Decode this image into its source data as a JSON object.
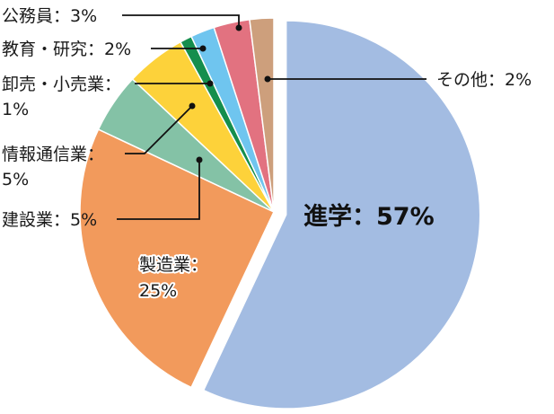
{
  "chart_data": {
    "type": "pie",
    "title": "",
    "slices": [
      {
        "key": "shingaku",
        "label": "進学",
        "value": 57,
        "display": "57%",
        "text": "進学：57%",
        "color": "#a3bce2"
      },
      {
        "key": "seizo",
        "label": "製造業",
        "value": 25,
        "display": "25%",
        "text_line1": "製造業：",
        "text_line2": "25%",
        "color": "#f29a5c"
      },
      {
        "key": "kensetsu",
        "label": "建設業",
        "value": 5,
        "display": "5%",
        "text": "建設業：5%",
        "color": "#84c2a6"
      },
      {
        "key": "joho",
        "label": "情報通信業",
        "value": 5,
        "display": "5%",
        "text_line1": "情報通信業：",
        "text_line2": "5%",
        "color": "#fdd23a"
      },
      {
        "key": "oroshi",
        "label": "卸売・小売業",
        "value": 1,
        "display": "1%",
        "text_line1": "卸売・小売業：",
        "text_line2": "1%",
        "color": "#158e4d"
      },
      {
        "key": "kyoiku",
        "label": "教育・研究",
        "value": 2,
        "display": "2%",
        "text": "教育・研究：2%",
        "color": "#6fc5ef"
      },
      {
        "key": "komuin",
        "label": "公務員",
        "value": 3,
        "display": "3%",
        "text": "公務員：3%",
        "color": "#e27280"
      },
      {
        "key": "sonota",
        "label": "その他",
        "value": 2,
        "display": "2%",
        "text": "その他：2%",
        "color": "#cd9f7c"
      }
    ],
    "start_angle_deg": 0,
    "direction": "clockwise",
    "exploded_slice": "shingaku",
    "legend": "none",
    "labels": "callouts with leader lines"
  }
}
